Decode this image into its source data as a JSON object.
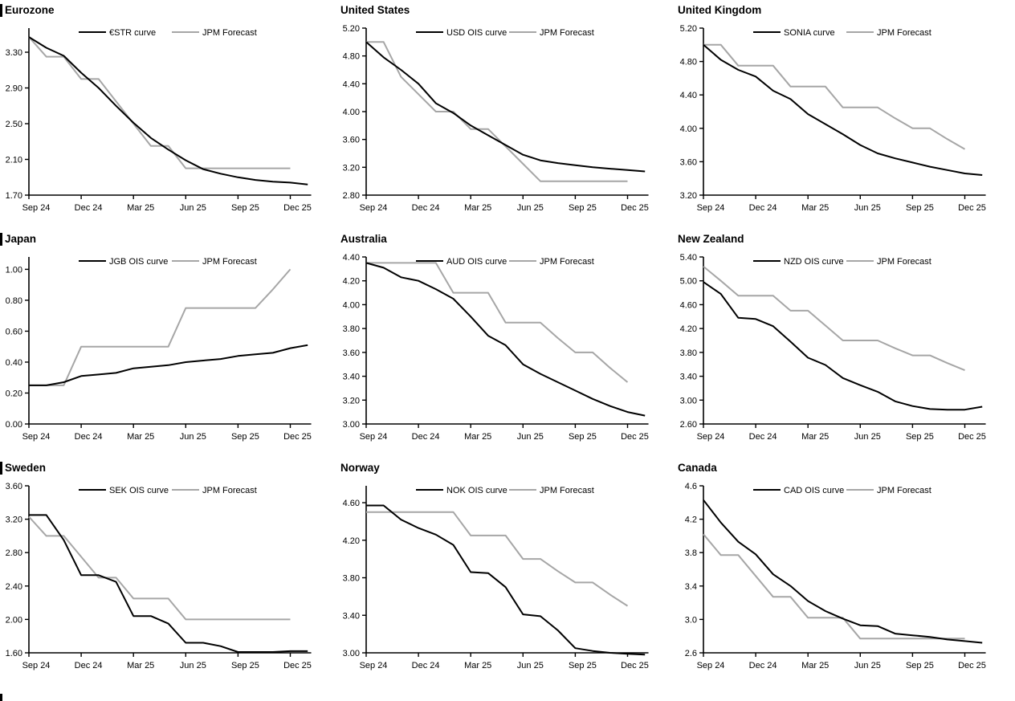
{
  "page": {
    "description": "3x3 grid of policy-rate OIS curve charts vs JPM forecasts",
    "section_marker_color": "#000000",
    "ois_color": "#000000",
    "forecast_color": "#a6a6a6"
  },
  "chart_data": [
    {
      "type": "line",
      "title": "Eurozone",
      "section_bar": true,
      "x_tick_labels": [
        "Sep 24",
        "Dec 24",
        "Mar 25",
        "Jun 25",
        "Sep 25",
        "Dec 25"
      ],
      "x_tick_positions": [
        0,
        3,
        6,
        9,
        12,
        15
      ],
      "x_start": "Sep 2024",
      "x_step": "1 month",
      "ylim": [
        1.7,
        3.57
      ],
      "yticks": [
        1.7,
        2.1,
        2.5,
        2.9,
        3.3
      ],
      "y_decimals": 2,
      "legend": [
        "€STR curve",
        "JPM Forecast"
      ],
      "series": [
        {
          "name": "€STR curve",
          "color": "#000000",
          "values": [
            3.47,
            3.35,
            3.26,
            3.07,
            2.9,
            2.7,
            2.51,
            2.34,
            2.21,
            2.09,
            1.99,
            1.94,
            1.9,
            1.87,
            1.85,
            1.84,
            1.82
          ]
        },
        {
          "name": "JPM Forecast",
          "color": "#a6a6a6",
          "values": [
            3.47,
            3.25,
            3.25,
            3.0,
            3.0,
            2.75,
            2.5,
            2.25,
            2.25,
            2.0,
            2.0,
            2.0,
            2.0,
            2.0,
            2.0,
            2.0
          ]
        }
      ]
    },
    {
      "type": "line",
      "title": "United States",
      "section_bar": false,
      "x_tick_labels": [
        "Sep 24",
        "Dec 24",
        "Mar 25",
        "Jun 25",
        "Sep 25",
        "Dec 25"
      ],
      "x_tick_positions": [
        0,
        3,
        6,
        9,
        12,
        15
      ],
      "x_start": "Sep 2024",
      "x_step": "1 month",
      "ylim": [
        2.8,
        5.2
      ],
      "yticks": [
        2.8,
        3.2,
        3.6,
        4.0,
        4.4,
        4.8,
        5.2
      ],
      "y_decimals": 2,
      "legend": [
        "USD OIS curve",
        "JPM Forecast"
      ],
      "series": [
        {
          "name": "USD OIS curve",
          "color": "#000000",
          "values": [
            5.0,
            4.78,
            4.6,
            4.4,
            4.12,
            3.98,
            3.8,
            3.66,
            3.52,
            3.38,
            3.3,
            3.26,
            3.23,
            3.2,
            3.18,
            3.16,
            3.14
          ]
        },
        {
          "name": "JPM Forecast",
          "color": "#a6a6a6",
          "values": [
            5.0,
            5.0,
            4.5,
            4.25,
            4.0,
            4.0,
            3.75,
            3.75,
            3.5,
            3.25,
            3.0,
            3.0,
            3.0,
            3.0,
            3.0,
            3.0
          ]
        }
      ]
    },
    {
      "type": "line",
      "title": "United Kingdom",
      "section_bar": false,
      "x_tick_labels": [
        "Sep 24",
        "Dec 24",
        "Mar 25",
        "Jun 25",
        "Sep 25",
        "Dec 25"
      ],
      "x_tick_positions": [
        0,
        3,
        6,
        9,
        12,
        15
      ],
      "x_start": "Sep 2024",
      "x_step": "1 month",
      "ylim": [
        3.2,
        5.2
      ],
      "yticks": [
        3.2,
        3.6,
        4.0,
        4.4,
        4.8,
        5.2
      ],
      "y_decimals": 2,
      "legend": [
        "SONIA curve",
        "JPM Forecast"
      ],
      "series": [
        {
          "name": "SONIA curve",
          "color": "#000000",
          "values": [
            5.0,
            4.82,
            4.7,
            4.62,
            4.45,
            4.35,
            4.17,
            4.05,
            3.93,
            3.8,
            3.7,
            3.64,
            3.59,
            3.54,
            3.5,
            3.46,
            3.44
          ]
        },
        {
          "name": "JPM Forecast",
          "color": "#a6a6a6",
          "values": [
            5.0,
            5.0,
            4.75,
            4.75,
            4.75,
            4.5,
            4.5,
            4.5,
            4.25,
            4.25,
            4.25,
            4.12,
            4.0,
            4.0,
            3.87,
            3.75
          ]
        }
      ]
    },
    {
      "type": "line",
      "title": "Japan",
      "section_bar": true,
      "x_tick_labels": [
        "Sep 24",
        "Dec 24",
        "Mar 25",
        "Jun 25",
        "Sep 25",
        "Dec 25"
      ],
      "x_tick_positions": [
        0,
        3,
        6,
        9,
        12,
        15
      ],
      "x_start": "Sep 2024",
      "x_step": "1 month",
      "ylim": [
        0.0,
        1.08
      ],
      "yticks": [
        0.0,
        0.2,
        0.4,
        0.6,
        0.8,
        1.0
      ],
      "y_decimals": 2,
      "legend": [
        "JGB OIS curve",
        "JPM Forecast"
      ],
      "series": [
        {
          "name": "JGB OIS curve",
          "color": "#000000",
          "values": [
            0.25,
            0.25,
            0.27,
            0.31,
            0.32,
            0.33,
            0.36,
            0.37,
            0.38,
            0.4,
            0.41,
            0.42,
            0.44,
            0.45,
            0.46,
            0.49,
            0.51
          ]
        },
        {
          "name": "JPM Forecast",
          "color": "#a6a6a6",
          "values": [
            0.25,
            0.25,
            0.25,
            0.5,
            0.5,
            0.5,
            0.5,
            0.5,
            0.5,
            0.75,
            0.75,
            0.75,
            0.75,
            0.75,
            0.87,
            1.0
          ]
        }
      ]
    },
    {
      "type": "line",
      "title": "Australia",
      "section_bar": false,
      "x_tick_labels": [
        "Sep 24",
        "Dec 24",
        "Mar 25",
        "Jun 25",
        "Sep 25",
        "Dec 25"
      ],
      "x_tick_positions": [
        0,
        3,
        6,
        9,
        12,
        15
      ],
      "x_start": "Sep 2024",
      "x_step": "1 month",
      "ylim": [
        3.0,
        4.4
      ],
      "yticks": [
        3.0,
        3.2,
        3.4,
        3.6,
        3.8,
        4.0,
        4.2,
        4.4
      ],
      "y_decimals": 2,
      "legend": [
        "AUD OIS curve",
        "JPM Forecast"
      ],
      "series": [
        {
          "name": "AUD OIS curve",
          "color": "#000000",
          "values": [
            4.35,
            4.31,
            4.23,
            4.2,
            4.13,
            4.05,
            3.9,
            3.74,
            3.66,
            3.5,
            3.42,
            3.35,
            3.28,
            3.21,
            3.15,
            3.1,
            3.07
          ]
        },
        {
          "name": "JPM Forecast",
          "color": "#a6a6a6",
          "values": [
            4.35,
            4.35,
            4.35,
            4.35,
            4.35,
            4.1,
            4.1,
            4.1,
            3.85,
            3.85,
            3.85,
            3.72,
            3.6,
            3.6,
            3.47,
            3.35
          ]
        }
      ]
    },
    {
      "type": "line",
      "title": "New Zealand",
      "section_bar": false,
      "x_tick_labels": [
        "Sep 24",
        "Dec 24",
        "Mar 25",
        "Jun 25",
        "Sep 25",
        "Dec 25"
      ],
      "x_tick_positions": [
        0,
        3,
        6,
        9,
        12,
        15
      ],
      "x_start": "Sep 2024",
      "x_step": "1 month",
      "ylim": [
        2.6,
        5.4
      ],
      "yticks": [
        2.6,
        3.0,
        3.4,
        3.8,
        4.2,
        4.6,
        5.0,
        5.4
      ],
      "y_decimals": 2,
      "legend": [
        "NZD OIS curve",
        "JPM Forecast"
      ],
      "series": [
        {
          "name": "NZD OIS curve",
          "color": "#000000",
          "values": [
            4.98,
            4.78,
            4.38,
            4.36,
            4.24,
            3.98,
            3.71,
            3.59,
            3.37,
            3.25,
            3.14,
            2.98,
            2.9,
            2.85,
            2.84,
            2.84,
            2.89
          ]
        },
        {
          "name": "JPM Forecast",
          "color": "#a6a6a6",
          "values": [
            5.24,
            5.0,
            4.75,
            4.75,
            4.75,
            4.5,
            4.5,
            4.25,
            4.0,
            4.0,
            4.0,
            3.87,
            3.75,
            3.75,
            3.62,
            3.5
          ]
        }
      ]
    },
    {
      "type": "line",
      "title": "Sweden",
      "section_bar": true,
      "x_tick_labels": [
        "Sep 24",
        "Dec 24",
        "Mar 25",
        "Jun 25",
        "Sep 25",
        "Dec 25"
      ],
      "x_tick_positions": [
        0,
        3,
        6,
        9,
        12,
        15
      ],
      "x_start": "Sep 2024",
      "x_step": "1 month",
      "ylim": [
        1.6,
        3.6
      ],
      "yticks": [
        1.6,
        2.0,
        2.4,
        2.8,
        3.2,
        3.6
      ],
      "y_decimals": 2,
      "legend": [
        "SEK OIS curve",
        "JPM Forecast"
      ],
      "series": [
        {
          "name": "SEK OIS curve",
          "color": "#000000",
          "values": [
            3.25,
            3.25,
            2.95,
            2.53,
            2.53,
            2.45,
            2.04,
            2.04,
            1.95,
            1.72,
            1.72,
            1.68,
            1.61,
            1.61,
            1.61,
            1.62,
            1.62
          ]
        },
        {
          "name": "JPM Forecast",
          "color": "#a6a6a6",
          "values": [
            3.23,
            3.0,
            3.0,
            2.75,
            2.5,
            2.5,
            2.25,
            2.25,
            2.25,
            2.0,
            2.0,
            2.0,
            2.0,
            2.0,
            2.0,
            2.0
          ]
        }
      ]
    },
    {
      "type": "line",
      "title": "Norway",
      "section_bar": false,
      "x_tick_labels": [
        "Sep 24",
        "Dec 24",
        "Mar 25",
        "Jun 25",
        "Sep 25",
        "Dec 25"
      ],
      "x_tick_positions": [
        0,
        3,
        6,
        9,
        12,
        15
      ],
      "x_start": "Sep 2024",
      "x_step": "1 month",
      "ylim": [
        3.0,
        4.78
      ],
      "yticks": [
        3.0,
        3.4,
        3.8,
        4.2,
        4.6
      ],
      "y_decimals": 2,
      "legend": [
        "NOK OIS curve",
        "JPM Forecast"
      ],
      "series": [
        {
          "name": "NOK OIS curve",
          "color": "#000000",
          "values": [
            4.57,
            4.57,
            4.42,
            4.33,
            4.26,
            4.15,
            3.86,
            3.85,
            3.7,
            3.41,
            3.39,
            3.24,
            3.05,
            3.02,
            3.0,
            2.99,
            2.98
          ]
        },
        {
          "name": "JPM Forecast",
          "color": "#a6a6a6",
          "values": [
            4.5,
            4.5,
            4.5,
            4.5,
            4.5,
            4.5,
            4.25,
            4.25,
            4.25,
            4.0,
            4.0,
            3.87,
            3.75,
            3.75,
            3.62,
            3.5
          ]
        }
      ]
    },
    {
      "type": "line",
      "title": "Canada",
      "section_bar": false,
      "x_tick_labels": [
        "Sep 24",
        "Dec 24",
        "Mar 25",
        "Jun 25",
        "Sep 25",
        "Dec 25"
      ],
      "x_tick_positions": [
        0,
        3,
        6,
        9,
        12,
        15
      ],
      "x_start": "Sep 2024",
      "x_step": "1 month",
      "ylim": [
        2.6,
        4.6
      ],
      "yticks": [
        2.6,
        3.0,
        3.4,
        3.8,
        4.2,
        4.6
      ],
      "y_decimals": 1,
      "legend": [
        "CAD OIS curve",
        "JPM Forecast"
      ],
      "series": [
        {
          "name": "CAD OIS curve",
          "color": "#000000",
          "values": [
            4.43,
            4.16,
            3.93,
            3.78,
            3.54,
            3.4,
            3.22,
            3.1,
            3.01,
            2.93,
            2.92,
            2.83,
            2.81,
            2.79,
            2.76,
            2.74,
            2.72
          ]
        },
        {
          "name": "JPM Forecast",
          "color": "#a6a6a6",
          "values": [
            4.02,
            3.77,
            3.77,
            3.52,
            3.27,
            3.27,
            3.02,
            3.02,
            3.02,
            2.77,
            2.77,
            2.77,
            2.77,
            2.77,
            2.77,
            2.77
          ]
        }
      ]
    }
  ]
}
